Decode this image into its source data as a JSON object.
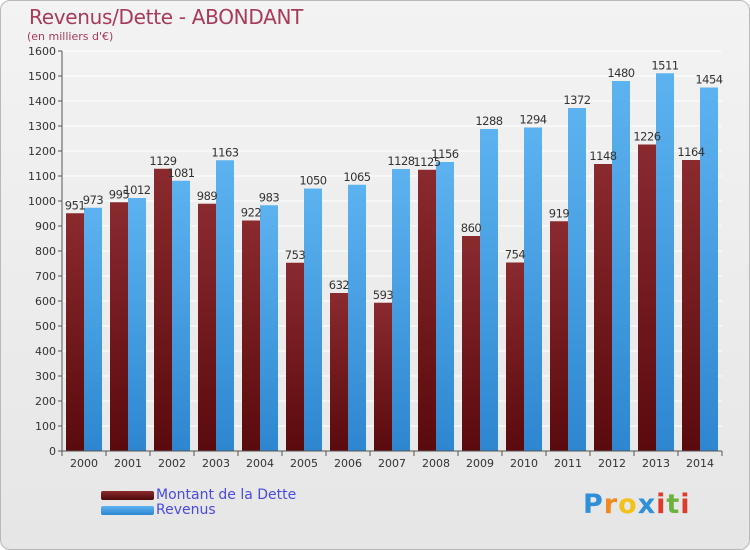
{
  "header": {
    "title": "Revenus/Dette - ABONDANT",
    "subtitle": "(en milliers d'€)"
  },
  "chart_data": {
    "type": "bar",
    "title": "Revenus/Dette - ABONDANT",
    "subtitle": "(en milliers d'€)",
    "categories": [
      "2000",
      "2001",
      "2002",
      "2003",
      "2004",
      "2005",
      "2006",
      "2007",
      "2008",
      "2009",
      "2010",
      "2011",
      "2012",
      "2013",
      "2014"
    ],
    "series": [
      {
        "name": "Montant de la Dette",
        "color": "#7a1f22",
        "values": [
          951,
          995,
          1129,
          989,
          922,
          753,
          632,
          593,
          1125,
          860,
          754,
          919,
          1148,
          1226,
          1164
        ],
        "labels": [
          "951",
          "995",
          "1129",
          "989",
          "922",
          "753",
          "632",
          "593",
          "1125",
          "860",
          "754",
          "919",
          "1148",
          "1226",
          "1164"
        ]
      },
      {
        "name": "Revenus",
        "color": "#4aa3e8",
        "values": [
          973,
          1012,
          1081,
          1163,
          983,
          1050,
          1065,
          1128,
          1156,
          1288,
          1294,
          1372,
          1480,
          1511,
          1454
        ],
        "labels": [
          "973",
          "1012",
          "1081",
          "1163",
          "983",
          "1050",
          "1065",
          "1128",
          "1156",
          "1288",
          "1294",
          "1372",
          "1480",
          "1511",
          "1454"
        ]
      }
    ],
    "ylim": [
      0,
      1600
    ],
    "yticks": [
      0,
      100,
      200,
      300,
      400,
      500,
      600,
      700,
      800,
      900,
      1000,
      1100,
      1200,
      1300,
      1400,
      1500,
      1600
    ],
    "grid": true,
    "legend_position": "bottom-left"
  },
  "legend": {
    "items": [
      {
        "label": "Montant de la Dette",
        "color": "#6b1518"
      },
      {
        "label": "Revenus",
        "color": "#3f9be6"
      }
    ]
  },
  "logo": {
    "letters": [
      "P",
      "r",
      "o",
      "x",
      "i",
      "t",
      "i"
    ],
    "colors": [
      "#2f8fd8",
      "#f08a1c",
      "#f3c21a",
      "#2f8fd8",
      "#e23a2a",
      "#6cb33e",
      "#e23a2a"
    ]
  }
}
